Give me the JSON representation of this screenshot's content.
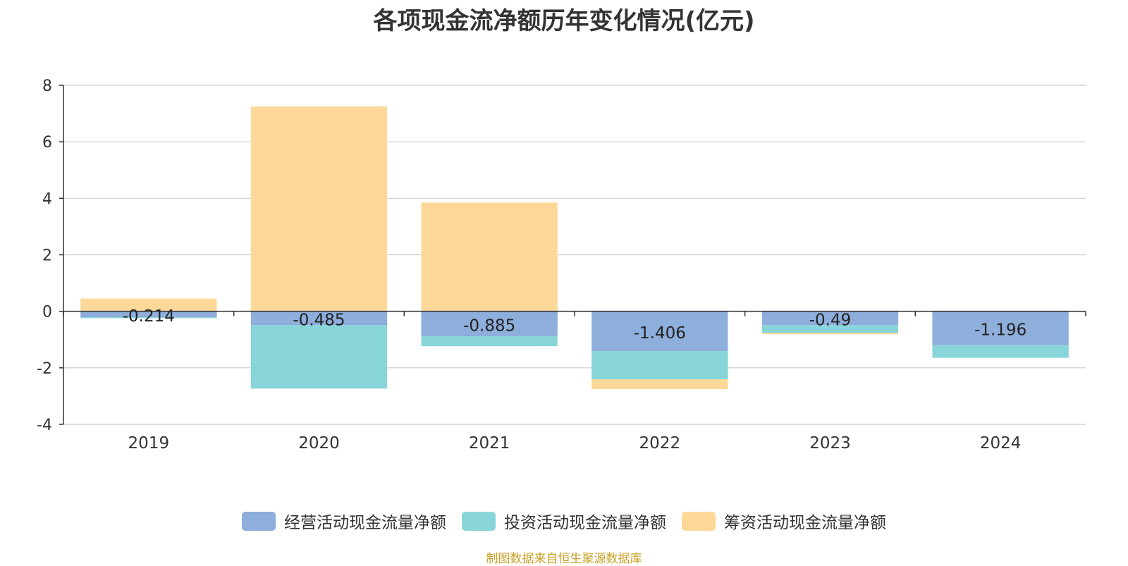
{
  "chart_data": {
    "type": "bar",
    "stacked": true,
    "title": "各项现金流净额历年变化情况(亿元)",
    "categories": [
      "2019",
      "2020",
      "2021",
      "2022",
      "2023",
      "2024"
    ],
    "ylim": [
      -4,
      8
    ],
    "yticks": [
      -4,
      -2,
      0,
      2,
      4,
      6,
      8
    ],
    "grid": true,
    "legend_position": "bottom",
    "series": [
      {
        "name": "经营活动现金流量净额",
        "color": "#8eaedb",
        "values": [
          -0.214,
          -0.485,
          -0.885,
          -1.406,
          -0.49,
          -1.196
        ],
        "labels": [
          "-0.214",
          "-0.485",
          "-0.885",
          "-1.406",
          "-0.49",
          "-1.196"
        ]
      },
      {
        "name": "投资活动现金流量净额",
        "color": "#87d5d8",
        "values": [
          -0.03,
          -2.25,
          -0.35,
          -1.0,
          -0.27,
          -0.45
        ]
      },
      {
        "name": "筹资活动现金流量净额",
        "color": "#fed898",
        "values": [
          0.45,
          7.25,
          3.85,
          -0.35,
          -0.05,
          0.0
        ]
      }
    ]
  },
  "source_note": "制图数据来自恒生聚源数据库"
}
